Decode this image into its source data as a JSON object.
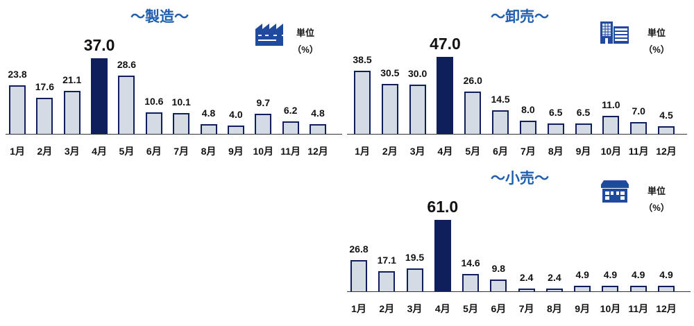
{
  "unit_label": "単位",
  "unit_paren": "（%）",
  "chart_data": [
    {
      "type": "bar",
      "title": "～製造～",
      "icon": "factory-icon",
      "categories": [
        "1月",
        "2月",
        "3月",
        "4月",
        "5月",
        "6月",
        "7月",
        "8月",
        "9月",
        "10月",
        "11月",
        "12月"
      ],
      "values": [
        23.8,
        17.6,
        21.1,
        37.0,
        28.6,
        10.6,
        10.1,
        4.8,
        4.0,
        9.7,
        6.2,
        4.8
      ],
      "labels": [
        "23.8",
        "17.6",
        "21.1",
        "37.0",
        "28.6",
        "10.6",
        "10.1",
        "4.8",
        "4.0",
        "9.7",
        "6.2",
        "4.8"
      ],
      "highlight": "4月",
      "ylabel": "単位（%）",
      "ylim": [
        0,
        37
      ]
    },
    {
      "type": "bar",
      "title": "～卸売～",
      "icon": "office-building-icon",
      "categories": [
        "1月",
        "2月",
        "3月",
        "4月",
        "5月",
        "6月",
        "7月",
        "8月",
        "9月",
        "10月",
        "11月",
        "12月"
      ],
      "values": [
        38.5,
        30.5,
        30.0,
        47.0,
        26.0,
        14.5,
        8.0,
        6.5,
        6.5,
        11.0,
        7.0,
        4.5
      ],
      "labels": [
        "38.5",
        "30.5",
        "30.0",
        "47.0",
        "26.0",
        "14.5",
        "8.0",
        "6.5",
        "6.5",
        "11.0",
        "7.0",
        "4.5"
      ],
      "highlight": "4月",
      "ylabel": "単位（%）",
      "ylim": [
        0,
        47
      ]
    },
    {
      "type": "bar",
      "title": "～小売～",
      "icon": "store-icon",
      "categories": [
        "1月",
        "2月",
        "3月",
        "4月",
        "5月",
        "6月",
        "7月",
        "8月",
        "9月",
        "10月",
        "11月",
        "12月"
      ],
      "values": [
        26.8,
        17.1,
        19.5,
        61.0,
        14.6,
        9.8,
        2.4,
        2.4,
        4.9,
        4.9,
        4.9,
        4.9
      ],
      "labels": [
        "26.8",
        "17.1",
        "19.5",
        "61.0",
        "14.6",
        "9.8",
        "2.4",
        "2.4",
        "4.9",
        "4.9",
        "4.9",
        "4.9"
      ],
      "highlight": "4月",
      "ylabel": "単位（%）",
      "ylim": [
        0,
        61
      ]
    }
  ]
}
